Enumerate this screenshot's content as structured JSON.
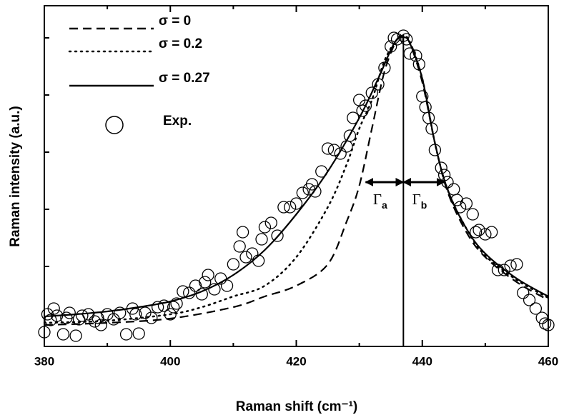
{
  "chart_data": {
    "type": "line",
    "xlabel": "Raman shift (cm⁻¹)",
    "ylabel": "Raman intensity (a.u.)",
    "xlim": [
      380,
      460
    ],
    "xticks": [
      380,
      400,
      420,
      440,
      460
    ],
    "xminor": [
      390,
      410,
      430,
      450
    ],
    "ylim": [
      0,
      477
    ],
    "yticks": [
      112,
      192,
      272,
      352,
      432
    ],
    "legend": "upper left",
    "vline": 437,
    "widths": [
      {
        "label": "Γ",
        "sub": "a",
        "x": [
          431,
          437
        ],
        "y": 230
      },
      {
        "label": "Γ",
        "sub": "b",
        "x": [
          437,
          443.5
        ],
        "y": 230
      }
    ],
    "series": [
      {
        "name": "σ = 0",
        "color": "#000000",
        "style": "dashed",
        "x": [
          380,
          390,
          400,
          410,
          415,
          420,
          425,
          428,
          430,
          432,
          434,
          436,
          437,
          438,
          440,
          442,
          444,
          447,
          450,
          455,
          460
        ],
        "values": [
          30,
          33,
          39,
          55,
          70,
          85,
          115,
          175,
          225,
          305,
          385,
          430,
          433,
          425,
          370,
          285,
          217,
          160,
          125,
          90,
          65
        ]
      },
      {
        "name": "σ = 0.2",
        "color": "#000000",
        "style": "dotted",
        "x": [
          380,
          390,
          400,
          405,
          410,
          415,
          420,
          425,
          428,
          430,
          432,
          434,
          436,
          437,
          438,
          440,
          442,
          444,
          447,
          450,
          455,
          460
        ],
        "values": [
          33,
          36,
          45,
          55,
          70,
          85,
          125,
          195,
          255,
          305,
          345,
          400,
          430,
          433,
          427,
          375,
          285,
          220,
          165,
          127,
          93,
          68
        ]
      },
      {
        "name": "σ = 0.27",
        "color": "#000000",
        "style": "solid",
        "x": [
          380,
          385,
          390,
          395,
          400,
          405,
          410,
          415,
          420,
          425,
          430,
          433,
          435,
          436,
          437,
          438,
          440,
          442,
          444,
          447,
          450,
          455,
          460
        ],
        "values": [
          42,
          45,
          49,
          55,
          63,
          77,
          100,
          135,
          185,
          245,
          320,
          375,
          415,
          430,
          433,
          425,
          375,
          285,
          220,
          165,
          130,
          95,
          70
        ]
      },
      {
        "name": "Exp.",
        "color": "#000000",
        "style": "circle",
        "x": [
          380,
          380.5,
          381,
          381.5,
          382,
          383,
          383.5,
          384,
          385,
          385.5,
          386,
          387,
          388,
          388.5,
          389,
          390,
          391,
          392,
          393,
          394,
          394.5,
          395,
          396,
          397,
          398,
          399,
          400,
          400.5,
          401,
          402,
          403,
          404,
          405,
          405.5,
          406,
          407,
          408,
          409,
          410,
          411,
          411.5,
          412,
          413,
          414,
          414.5,
          415,
          416,
          417,
          418,
          419,
          420,
          421,
          422,
          422.5,
          423,
          424,
          425,
          426,
          427,
          428,
          428.5,
          429,
          430,
          430.5,
          431,
          432,
          433,
          434,
          435,
          435.5,
          436,
          437,
          437.5,
          438,
          439,
          439.5,
          440,
          440.5,
          441,
          441.5,
          442,
          443,
          443.5,
          444,
          445,
          445.5,
          446,
          447,
          448,
          448.5,
          449,
          450,
          451,
          452,
          453,
          454,
          455,
          456,
          457,
          458,
          459,
          459.5,
          460
        ],
        "values": [
          20,
          45,
          37,
          53,
          43,
          17,
          40,
          47,
          15,
          38,
          43,
          45,
          35,
          40,
          30,
          45,
          38,
          47,
          17,
          53,
          45,
          18,
          47,
          40,
          55,
          57,
          45,
          55,
          60,
          77,
          75,
          85,
          73,
          90,
          100,
          80,
          95,
          85,
          115,
          140,
          160,
          125,
          130,
          120,
          150,
          167,
          173,
          155,
          195,
          195,
          200,
          215,
          220,
          227,
          217,
          245,
          277,
          275,
          270,
          280,
          295,
          320,
          345,
          330,
          337,
          355,
          367,
          390,
          420,
          432,
          430,
          435,
          430,
          410,
          407,
          395,
          350,
          335,
          320,
          305,
          275,
          250,
          240,
          230,
          220,
          205,
          195,
          200,
          185,
          160,
          163,
          157,
          160,
          107,
          107,
          113,
          115,
          75,
          65,
          53,
          40,
          32,
          30
        ]
      }
    ]
  }
}
